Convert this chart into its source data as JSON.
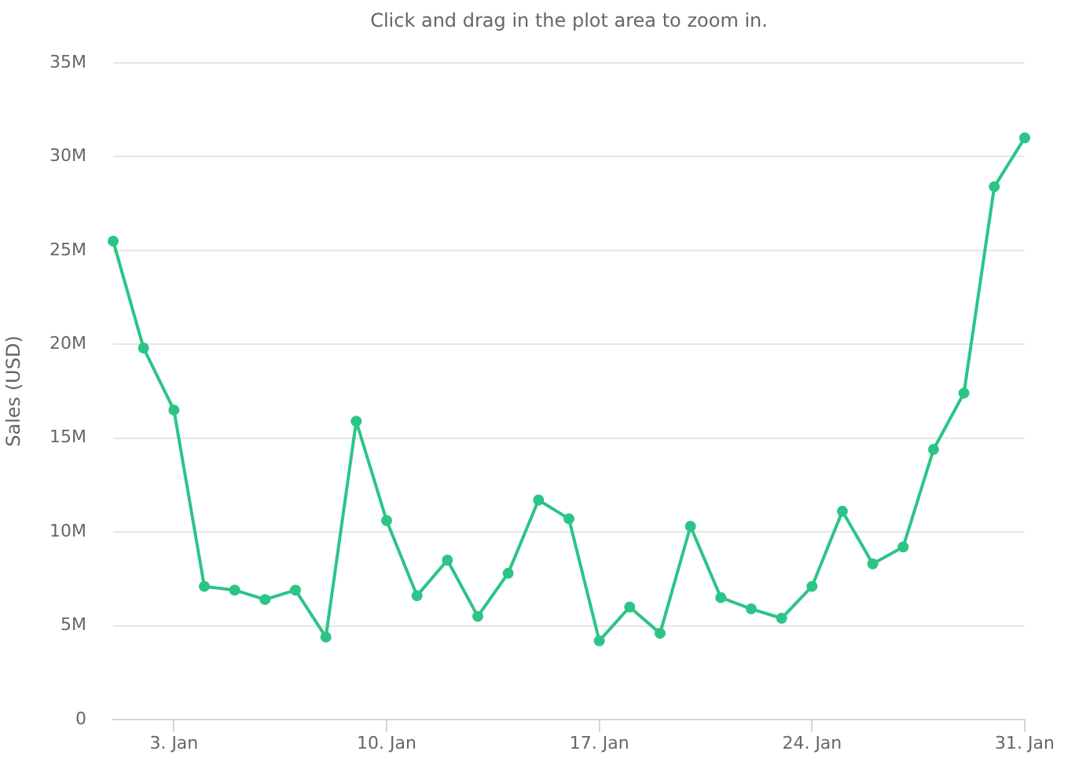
{
  "chart_data": {
    "type": "line",
    "subtitle": "Click and drag in the plot area to zoom in.",
    "ylabel": "Sales (USD)",
    "x": [
      "--01-01",
      "--01-02",
      "--01-03",
      "--01-04",
      "--01-05",
      "--01-06",
      "--01-07",
      "--01-08",
      "--01-09",
      "--01-10",
      "--01-11",
      "--01-12",
      "--01-13",
      "--01-14",
      "--01-15",
      "--01-16",
      "--01-17",
      "--01-18",
      "--01-19",
      "--01-20",
      "--01-21",
      "--01-22",
      "--01-23",
      "--01-24",
      "--01-25",
      "--01-26",
      "--01-27",
      "--01-28",
      "--01-29",
      "--01-30",
      "--01-31"
    ],
    "values": [
      25500000,
      19800000,
      16500000,
      7100000,
      6900000,
      6400000,
      6900000,
      4400000,
      15900000,
      10600000,
      6600000,
      8500000,
      5500000,
      7800000,
      11700000,
      10700000,
      4200000,
      6000000,
      4600000,
      10300000,
      6500000,
      5900000,
      5400000,
      7100000,
      11100000,
      8300000,
      9200000,
      14400000,
      17400000,
      28400000,
      31000000
    ],
    "color": "#2bc587",
    "xlim": [
      "--01-01",
      "--01-31"
    ],
    "xticks": [
      {
        "value": "--01-03",
        "label": "3. Jan"
      },
      {
        "value": "--01-10",
        "label": "10. Jan"
      },
      {
        "value": "--01-17",
        "label": "17. Jan"
      },
      {
        "value": "--01-24",
        "label": "24. Jan"
      },
      {
        "value": "--01-31",
        "label": "31. Jan"
      }
    ],
    "ylim": [
      0,
      35000000
    ],
    "yticks": [
      0,
      {
        "value": 5000000,
        "label": "5M"
      },
      {
        "value": 10000000,
        "label": "10M"
      },
      {
        "value": 15000000,
        "label": "15M"
      },
      {
        "value": 20000000,
        "label": "20M"
      },
      {
        "value": 25000000,
        "label": "25M"
      },
      {
        "value": 30000000,
        "label": "30M"
      },
      {
        "value": 35000000,
        "label": "35M"
      }
    ],
    "grid": "y",
    "legend": false,
    "marker": "circle",
    "line_style": "solid"
  }
}
